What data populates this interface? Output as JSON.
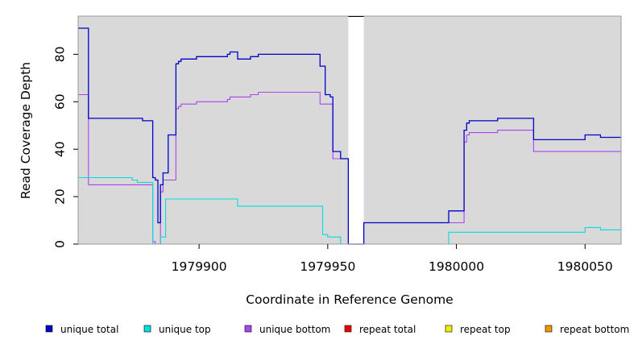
{
  "chart_data": {
    "type": "line",
    "title": "",
    "xlabel": "Coordinate in Reference Genome",
    "ylabel": "Read Coverage Depth",
    "xlim": [
      1979853,
      1980064
    ],
    "ylim": [
      0,
      96
    ],
    "x_ticks": [
      1979900,
      1979950,
      1980000,
      1980050
    ],
    "y_ticks": [
      0,
      20,
      40,
      60,
      80
    ],
    "x_tick_labels": [
      "1979900",
      "1979950",
      "1980000",
      "1980050"
    ],
    "y_tick_labels": [
      "0",
      "20",
      "40",
      "60",
      "80"
    ],
    "gap_region": [
      1979958,
      1979964
    ],
    "grid": false,
    "background_color": "#d9d9d9",
    "legend_position": "bottom",
    "series": [
      {
        "name": "unique total",
        "color": "#0000cc",
        "points": [
          [
            1979853,
            91
          ],
          [
            1979857,
            91
          ],
          [
            1979857,
            53
          ],
          [
            1979878,
            53
          ],
          [
            1979878,
            52
          ],
          [
            1979882,
            52
          ],
          [
            1979882,
            28
          ],
          [
            1979883,
            28
          ],
          [
            1979883,
            27
          ],
          [
            1979884,
            27
          ],
          [
            1979884,
            9
          ],
          [
            1979885,
            9
          ],
          [
            1979885,
            25
          ],
          [
            1979886,
            25
          ],
          [
            1979886,
            30
          ],
          [
            1979888,
            30
          ],
          [
            1979888,
            46
          ],
          [
            1979891,
            46
          ],
          [
            1979891,
            76
          ],
          [
            1979892,
            76
          ],
          [
            1979892,
            77
          ],
          [
            1979893,
            77
          ],
          [
            1979893,
            78
          ],
          [
            1979899,
            78
          ],
          [
            1979899,
            79
          ],
          [
            1979911,
            79
          ],
          [
            1979911,
            80
          ],
          [
            1979912,
            80
          ],
          [
            1979912,
            81
          ],
          [
            1979915,
            81
          ],
          [
            1979915,
            78
          ],
          [
            1979920,
            78
          ],
          [
            1979920,
            79
          ],
          [
            1979923,
            79
          ],
          [
            1979923,
            80
          ],
          [
            1979947,
            80
          ],
          [
            1979947,
            75
          ],
          [
            1979949,
            75
          ],
          [
            1979949,
            63
          ],
          [
            1979951,
            63
          ],
          [
            1979951,
            62
          ],
          [
            1979952,
            62
          ],
          [
            1979952,
            39
          ],
          [
            1979955,
            39
          ],
          [
            1979955,
            36
          ],
          [
            1979958,
            36
          ],
          [
            1979958,
            0
          ],
          [
            1979964,
            0
          ],
          [
            1979964,
            9
          ],
          [
            1979997,
            9
          ],
          [
            1979997,
            14
          ],
          [
            1980003,
            14
          ],
          [
            1980003,
            48
          ],
          [
            1980004,
            48
          ],
          [
            1980004,
            51
          ],
          [
            1980005,
            51
          ],
          [
            1980005,
            52
          ],
          [
            1980016,
            52
          ],
          [
            1980016,
            53
          ],
          [
            1980030,
            53
          ],
          [
            1980030,
            44
          ],
          [
            1980050,
            44
          ],
          [
            1980050,
            46
          ],
          [
            1980056,
            46
          ],
          [
            1980056,
            45
          ],
          [
            1980064,
            45
          ]
        ]
      },
      {
        "name": "unique top",
        "color": "#00dddd",
        "points": [
          [
            1979853,
            28
          ],
          [
            1979874,
            28
          ],
          [
            1979874,
            27
          ],
          [
            1979876,
            27
          ],
          [
            1979876,
            26
          ],
          [
            1979882,
            26
          ],
          [
            1979882,
            0
          ],
          [
            1979885,
            0
          ],
          [
            1979885,
            3
          ],
          [
            1979887,
            3
          ],
          [
            1979887,
            19
          ],
          [
            1979915,
            19
          ],
          [
            1979915,
            16
          ],
          [
            1979948,
            16
          ],
          [
            1979948,
            4
          ],
          [
            1979950,
            4
          ],
          [
            1979950,
            3
          ],
          [
            1979955,
            3
          ],
          [
            1979955,
            0
          ],
          [
            1979958,
            0
          ],
          [
            1979964,
            0
          ],
          [
            1979997,
            0
          ],
          [
            1979997,
            5
          ],
          [
            1980050,
            5
          ],
          [
            1980050,
            7
          ],
          [
            1980056,
            7
          ],
          [
            1980056,
            6
          ],
          [
            1980064,
            6
          ]
        ]
      },
      {
        "name": "unique bottom",
        "color": "#aa44ee",
        "points": [
          [
            1979853,
            63
          ],
          [
            1979857,
            63
          ],
          [
            1979857,
            25
          ],
          [
            1979882,
            25
          ],
          [
            1979882,
            1
          ],
          [
            1979883,
            1
          ],
          [
            1979883,
            0
          ],
          [
            1979885,
            0
          ],
          [
            1979885,
            22
          ],
          [
            1979886,
            22
          ],
          [
            1979886,
            27
          ],
          [
            1979891,
            27
          ],
          [
            1979891,
            57
          ],
          [
            1979892,
            57
          ],
          [
            1979892,
            58
          ],
          [
            1979893,
            58
          ],
          [
            1979893,
            59
          ],
          [
            1979899,
            59
          ],
          [
            1979899,
            60
          ],
          [
            1979911,
            60
          ],
          [
            1979911,
            61
          ],
          [
            1979912,
            61
          ],
          [
            1979912,
            62
          ],
          [
            1979920,
            62
          ],
          [
            1979920,
            63
          ],
          [
            1979923,
            63
          ],
          [
            1979923,
            64
          ],
          [
            1979947,
            64
          ],
          [
            1979947,
            59
          ],
          [
            1979952,
            59
          ],
          [
            1979952,
            36
          ],
          [
            1979958,
            36
          ],
          [
            1979958,
            0
          ],
          [
            1979964,
            0
          ],
          [
            1979964,
            9
          ],
          [
            1980003,
            9
          ],
          [
            1980003,
            43
          ],
          [
            1980004,
            43
          ],
          [
            1980004,
            46
          ],
          [
            1980005,
            46
          ],
          [
            1980005,
            47
          ],
          [
            1980016,
            47
          ],
          [
            1980016,
            48
          ],
          [
            1980030,
            48
          ],
          [
            1980030,
            39
          ],
          [
            1980064,
            39
          ]
        ]
      },
      {
        "name": "repeat total",
        "color": "#ee0000",
        "points": [
          [
            1979853,
            0
          ],
          [
            1980064,
            0
          ]
        ]
      },
      {
        "name": "repeat top",
        "color": "#eeee00",
        "points": [
          [
            1979853,
            0
          ],
          [
            1980064,
            0
          ]
        ]
      },
      {
        "name": "repeat bottom",
        "color": "#ee9900",
        "points": [
          [
            1979853,
            0
          ],
          [
            1980064,
            0
          ]
        ]
      }
    ]
  }
}
